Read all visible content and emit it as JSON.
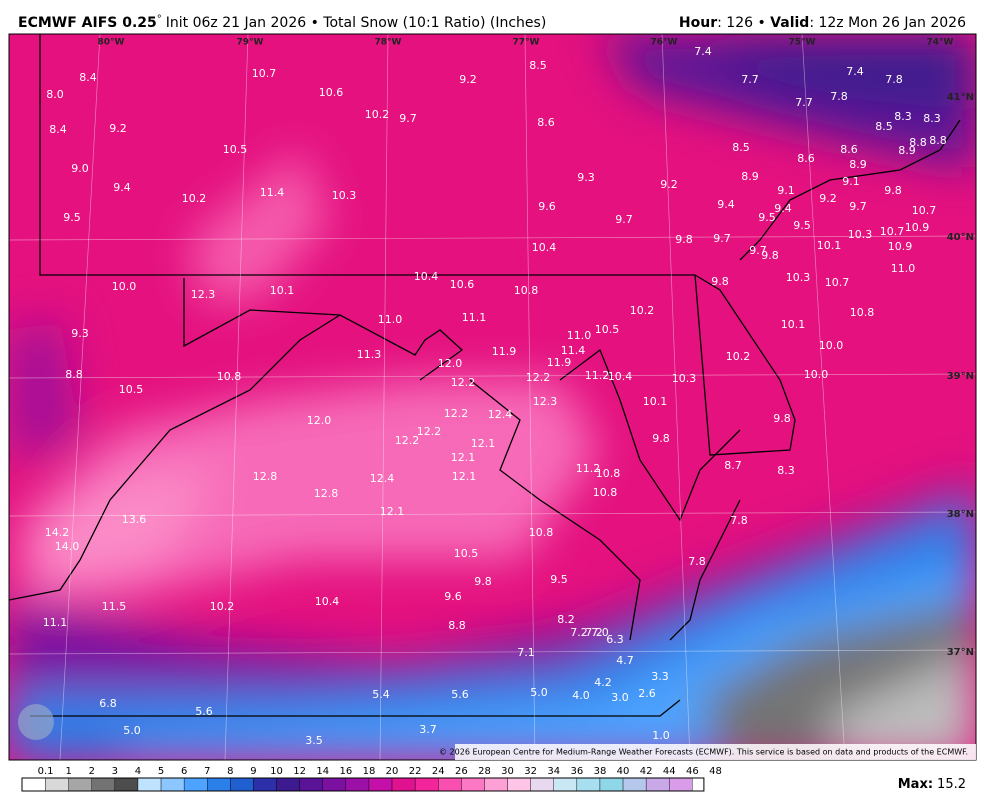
{
  "header": {
    "model": "ECMWF AIFS 0.25",
    "degree": "°",
    "subtitle": "Init 06z 21 Jan 2026 • Total Snow (10:1 Ratio) (Inches)",
    "hour_label": "Hour",
    "hour_value": ": 126 • ",
    "valid_label": "Valid",
    "valid_value": ": 12z Mon 26 Jan 2026"
  },
  "longitudes": [
    "80°W",
    "79°W",
    "78°W",
    "77°W",
    "76°W",
    "75°W",
    "74°W"
  ],
  "latitudes": [
    "41°N",
    "40°N",
    "39°N",
    "38°N",
    "37°N"
  ],
  "map_labels": [
    "8.4",
    "8.0",
    "8.4",
    "9.2",
    "9.0",
    "9.4",
    "9.5",
    "10.7",
    "10.6",
    "10.2",
    "9.7",
    "9.2",
    "8.5",
    "8.6",
    "7.4",
    "7.7",
    "7.4",
    "7.8",
    "7.7",
    "7.8",
    "8.5",
    "8.3",
    "8.3",
    "8.9",
    "8.8",
    "8.8",
    "8.5",
    "8.6",
    "8.6",
    "8.9",
    "8.9",
    "9.1",
    "9.1",
    "9.8",
    "9.2",
    "9.7",
    "9.4",
    "9.5",
    "9.5",
    "10.7",
    "10.9",
    "10.7",
    "10.9",
    "10.1",
    "10.3",
    "9.7",
    "9.8",
    "11.0",
    "10.5",
    "11.4",
    "10.2",
    "10.3",
    "9.3",
    "9.2",
    "9.6",
    "9.7",
    "9.4",
    "9.8",
    "9.7",
    "10.4",
    "10.4",
    "10.6",
    "10.8",
    "10.0",
    "12.3",
    "10.1",
    "11.0",
    "11.1",
    "9.8",
    "10.3",
    "10.7",
    "10.2",
    "10.8",
    "10.1",
    "11.0",
    "10.5",
    "9.3",
    "11.3",
    "11.9",
    "11.4",
    "11.9",
    "10.0",
    "10.2",
    "8.8",
    "10.8",
    "12.0",
    "12.2",
    "11.2",
    "10.4",
    "10.3",
    "10.0",
    "10.5",
    "12.2",
    "12.3",
    "12.2",
    "12.4",
    "10.1",
    "9.8",
    "12.0",
    "12.2",
    "12.2",
    "12.1",
    "9.8",
    "12.1",
    "8.7",
    "8.3",
    "11.2",
    "10.8",
    "12.8",
    "12.4",
    "12.1",
    "12.8",
    "10.8",
    "12.1",
    "13.6",
    "14.2",
    "14.0",
    "7.8",
    "10.8",
    "10.5",
    "7.8",
    "9.8",
    "9.5",
    "9.6",
    "11.5",
    "10.2",
    "10.4",
    "8.2",
    "11.1",
    "8.8",
    "7.2",
    "7.2",
    "7.0",
    "6.3",
    "7.1",
    "4.7",
    "3.3",
    "4.2",
    "6.8",
    "5.4",
    "5.6",
    "5.0",
    "4.0",
    "3.0",
    "2.6",
    "5.6",
    "5.0",
    "3.7",
    "1.0",
    "3.5"
  ],
  "copyright": "© 2026 European Centre for Medium-Range Weather Forecasts (ECMWF). This service is based on data and products of the ECMWF.",
  "colorbar": {
    "ticks": [
      "0.1",
      "1",
      "2",
      "3",
      "4",
      "5",
      "6",
      "7",
      "8",
      "9",
      "10",
      "12",
      "14",
      "16",
      "18",
      "20",
      "22",
      "24",
      "26",
      "28",
      "30",
      "32",
      "34",
      "36",
      "38",
      "40",
      "42",
      "44",
      "46",
      "48"
    ],
    "colors": [
      "#ffffff",
      "#d9d9d9",
      "#a6a6a6",
      "#737373",
      "#4d4d4d",
      "#bfe3ff",
      "#8cc6ff",
      "#4da3ff",
      "#2b7fe8",
      "#1f5fd0",
      "#2c2fa8",
      "#3d1a8f",
      "#5a1296",
      "#7c10a0",
      "#9c10a8",
      "#c410a8",
      "#e0128f",
      "#f2269a",
      "#fa4fb0",
      "#fd78c4",
      "#fda0d6",
      "#fec5e6",
      "#e8d8f0",
      "#c9e8f4",
      "#a8dff0",
      "#8fd6e8",
      "#b5c8ec",
      "#c9a8e8",
      "#d99ce8"
    ]
  },
  "max_label": "Max:",
  "max_value": "15.2"
}
